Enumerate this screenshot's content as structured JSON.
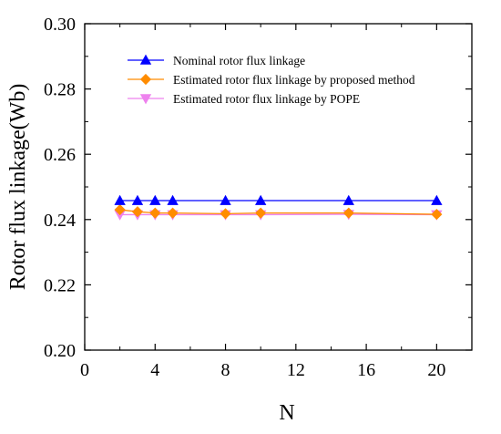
{
  "chart_data": {
    "type": "line",
    "title": "",
    "xlabel": "N",
    "ylabel": "Rotor flux linkage(Wb)",
    "xlim": [
      0,
      22
    ],
    "ylim": [
      0.2,
      0.3
    ],
    "x_ticks": [
      0,
      4,
      8,
      12,
      16,
      20
    ],
    "x_tick_labels": [
      "0",
      "4",
      "8",
      "12",
      "16",
      "20"
    ],
    "y_ticks": [
      0.2,
      0.22,
      0.24,
      0.26,
      0.28,
      0.3
    ],
    "y_tick_labels": [
      "0.20",
      "0.22",
      "0.24",
      "0.26",
      "0.28",
      "0.30"
    ],
    "grid": false,
    "legend_position": "top-right",
    "x": [
      2,
      3,
      4,
      5,
      8,
      10,
      15,
      20
    ],
    "series": [
      {
        "name": "Nominal rotor flux linkage",
        "color": "#0000ff",
        "marker": "triangle-up",
        "values": [
          0.2458,
          0.2458,
          0.2458,
          0.2458,
          0.2458,
          0.2458,
          0.2458,
          0.2458
        ]
      },
      {
        "name": "Estimated rotor flux linkage by proposed method",
        "color": "#ff8c00",
        "marker": "diamond",
        "values": [
          0.243,
          0.2424,
          0.242,
          0.242,
          0.2418,
          0.242,
          0.242,
          0.2416
        ]
      },
      {
        "name": "Estimated rotor flux linkage by POPE",
        "color": "#ee82ee",
        "marker": "triangle-down",
        "values": [
          0.2415,
          0.2415,
          0.2415,
          0.2415,
          0.2415,
          0.2415,
          0.2416,
          0.2415
        ]
      }
    ]
  }
}
